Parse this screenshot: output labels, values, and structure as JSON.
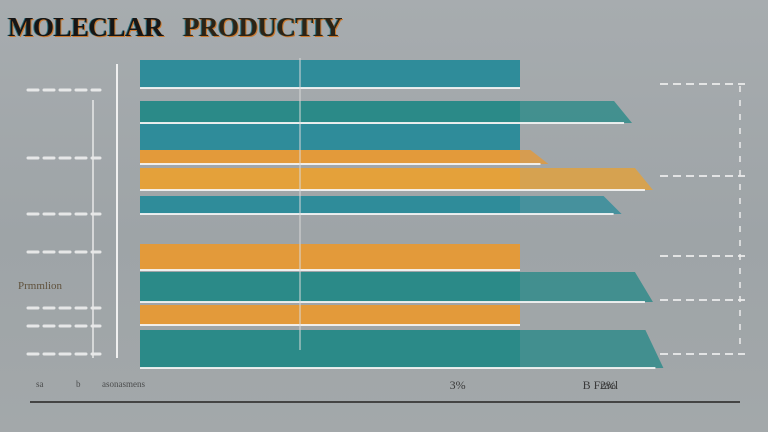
{
  "chart_data": {
    "type": "bar",
    "title_parts": [
      "MOLECLAR",
      "PRODUCTIY"
    ],
    "orientation": "horizontal",
    "xlim": [
      0,
      100
    ],
    "y_label_fragment": "Prmmlion",
    "x_tick_labels": [
      {
        "value": 42,
        "label": "3%"
      },
      {
        "value": 77,
        "label": "B Fracl"
      },
      {
        "value": 115,
        "label": "2%"
      }
    ],
    "footer_fragments": [
      "sa",
      "b",
      "asonasmens"
    ],
    "bars": [
      {
        "value": 100,
        "color": "#2f8c9a",
        "extra": 0
      },
      {
        "value": 100,
        "color": "#2b8a88",
        "extra": 45
      },
      {
        "value": 100,
        "color": "#2f8c9a",
        "extra": 0
      },
      {
        "value": 100,
        "color": "#e39a3a",
        "extra": 5
      },
      {
        "value": 100,
        "color": "#e4a13a",
        "extra": 55
      },
      {
        "value": 100,
        "color": "#2f8c9a",
        "extra": 40
      },
      {
        "value": 100,
        "color": "#e39a3a",
        "extra": 0
      },
      {
        "value": 100,
        "color": "#2b8a88",
        "extra": 55
      },
      {
        "value": 100,
        "color": "#e39a3a",
        "extra": 0
      },
      {
        "value": 100,
        "color": "#2b8a88",
        "extra": 60
      }
    ],
    "colors": {
      "teal": "#2f8c9a",
      "orange": "#e39a3a",
      "dark_orange": "#c9782e"
    },
    "grid": true
  }
}
